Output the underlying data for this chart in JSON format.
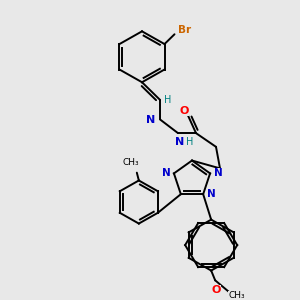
{
  "bg_color": "#e8e8e8",
  "atom_colors": {
    "C": "#000000",
    "N": "#0000cc",
    "O": "#ff0000",
    "S": "#cccc00",
    "Br": "#cc6600",
    "H": "#008080"
  },
  "lw": 1.4
}
